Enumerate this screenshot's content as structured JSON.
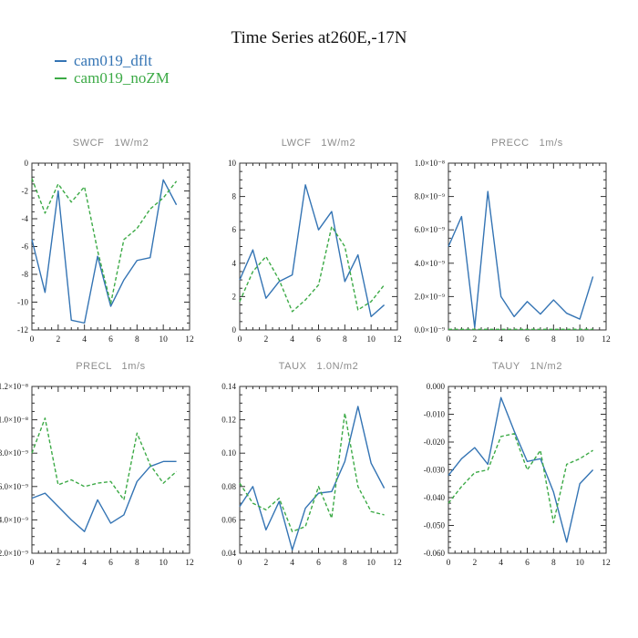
{
  "page": {
    "title": "Time Series at260E,-17N"
  },
  "legend": {
    "items": [
      {
        "label": "cam019_dflt",
        "color": "#3474B4"
      },
      {
        "label": "cam019_noZM",
        "color": "#3CAA46"
      }
    ]
  },
  "colors": {
    "blue": "#3474B4",
    "green": "#3CAA46",
    "axis": "#333333"
  },
  "axes": {
    "xlim": [
      0,
      12
    ],
    "xticks": [
      0,
      2,
      4,
      6,
      8,
      10,
      12
    ],
    "xtick_labels": [
      "0",
      "2",
      "4",
      "6",
      "8",
      "10",
      "12"
    ],
    "xminor": 0.5
  },
  "chart_data": [
    {
      "type": "line",
      "title": "SWCF   1W/m2",
      "x": [
        0,
        1,
        2,
        3,
        4,
        5,
        6,
        7,
        8,
        9,
        10,
        11
      ],
      "ylim": [
        -12,
        0
      ],
      "yminor": 0.5,
      "yticks": [
        {
          "v": 0,
          "label": "0"
        },
        {
          "v": -2,
          "label": "-2"
        },
        {
          "v": -4,
          "label": "-4"
        },
        {
          "v": -6,
          "label": "-6"
        },
        {
          "v": -8,
          "label": "-8"
        },
        {
          "v": -10,
          "label": "-10"
        },
        {
          "v": -12,
          "label": "-12"
        }
      ],
      "series": [
        {
          "name": "cam019_dflt",
          "color": "#3474B4",
          "dash": null,
          "values": [
            -5.5,
            -9.3,
            -2.0,
            -11.3,
            -11.5,
            -6.7,
            -10.3,
            -8.4,
            -7.0,
            -6.8,
            -1.2,
            -3.0
          ]
        },
        {
          "name": "cam019_noZM",
          "color": "#3CAA46",
          "dash": "4,2.5",
          "values": [
            -1.1,
            -3.6,
            -1.5,
            -2.8,
            -1.7,
            -6.3,
            -10.1,
            -5.5,
            -4.7,
            -3.3,
            -2.5,
            -1.3
          ]
        }
      ]
    },
    {
      "type": "line",
      "title": "LWCF   1W/m2",
      "x": [
        0,
        1,
        2,
        3,
        4,
        5,
        6,
        7,
        8,
        9,
        10,
        11
      ],
      "ylim": [
        0,
        10
      ],
      "yminor": 0.5,
      "yticks": [
        {
          "v": 10,
          "label": "10"
        },
        {
          "v": 8,
          "label": "8"
        },
        {
          "v": 6,
          "label": "6"
        },
        {
          "v": 4,
          "label": "4"
        },
        {
          "v": 2,
          "label": "2"
        },
        {
          "v": 0,
          "label": "0"
        }
      ],
      "series": [
        {
          "name": "cam019_dflt",
          "color": "#3474B4",
          "dash": null,
          "values": [
            3.0,
            4.8,
            1.9,
            2.9,
            3.3,
            8.7,
            6.0,
            7.1,
            2.9,
            4.5,
            0.8,
            1.5
          ]
        },
        {
          "name": "cam019_noZM",
          "color": "#3CAA46",
          "dash": "4,2.5",
          "values": [
            1.7,
            3.5,
            4.4,
            3.0,
            1.1,
            1.8,
            2.7,
            6.2,
            5.0,
            1.2,
            1.7,
            2.7
          ]
        }
      ]
    },
    {
      "type": "line",
      "title": "PRECC   1m/s",
      "x": [
        0,
        1,
        2,
        3,
        4,
        5,
        6,
        7,
        8,
        9,
        10,
        11
      ],
      "ylim": [
        0,
        1e-08
      ],
      "yminor": 5e-10,
      "yticks": [
        {
          "v": 1e-08,
          "label": "1.0×10⁻⁸"
        },
        {
          "v": 8e-09,
          "label": "8.0×10⁻⁹"
        },
        {
          "v": 6e-09,
          "label": "6.0×10⁻⁹"
        },
        {
          "v": 4e-09,
          "label": "4.0×10⁻⁹"
        },
        {
          "v": 2e-09,
          "label": "2.0×10⁻⁹"
        },
        {
          "v": 0,
          "label": "0.0×10⁻⁹"
        }
      ],
      "series": [
        {
          "name": "cam019_dflt",
          "color": "#3474B4",
          "dash": null,
          "values": [
            5e-09,
            6.8e-09,
            1.5e-10,
            8.3e-09,
            2e-09,
            8e-10,
            1.7e-09,
            9.5e-10,
            1.8e-09,
            1e-09,
            6.5e-10,
            3.2e-09
          ]
        },
        {
          "name": "cam019_noZM",
          "color": "#3CAA46",
          "dash": "4,2.5",
          "values": [
            4e-11,
            4e-11,
            4e-11,
            4e-11,
            4e-11,
            4e-11,
            4e-11,
            4e-11,
            4e-11,
            4e-11,
            4e-11,
            4e-11
          ]
        }
      ]
    },
    {
      "type": "line",
      "title": "PRECL   1m/s",
      "x": [
        0,
        1,
        2,
        3,
        4,
        5,
        6,
        7,
        8,
        9,
        10,
        11
      ],
      "ylim": [
        2e-09,
        1.2e-08
      ],
      "yminor": 5e-10,
      "yticks": [
        {
          "v": 1.2e-08,
          "label": "1.2×10⁻⁸"
        },
        {
          "v": 1e-08,
          "label": "1.0×10⁻⁸"
        },
        {
          "v": 8e-09,
          "label": "8.0×10⁻⁹"
        },
        {
          "v": 6e-09,
          "label": "6.0×10⁻⁹"
        },
        {
          "v": 4e-09,
          "label": "4.0×10⁻⁹"
        },
        {
          "v": 2e-09,
          "label": "2.0×10⁻⁹"
        }
      ],
      "series": [
        {
          "name": "cam019_dflt",
          "color": "#3474B4",
          "dash": null,
          "values": [
            5.3e-09,
            5.6e-09,
            4.8e-09,
            4e-09,
            3.3e-09,
            5.2e-09,
            3.8e-09,
            4.3e-09,
            6.3e-09,
            7.2e-09,
            7.5e-09,
            7.5e-09
          ]
        },
        {
          "name": "cam019_noZM",
          "color": "#3CAA46",
          "dash": "4,2.5",
          "values": [
            8e-09,
            1.01e-08,
            6.1e-09,
            6.4e-09,
            6e-09,
            6.2e-09,
            6.3e-09,
            5.2e-09,
            9.2e-09,
            7.3e-09,
            6.2e-09,
            6.9e-09
          ]
        }
      ]
    },
    {
      "type": "line",
      "title": "TAUX   1.0N/m2",
      "x": [
        0,
        1,
        2,
        3,
        4,
        5,
        6,
        7,
        8,
        9,
        10,
        11
      ],
      "ylim": [
        0.04,
        0.14
      ],
      "yminor": 0.005,
      "yticks": [
        {
          "v": 0.14,
          "label": "0.14"
        },
        {
          "v": 0.12,
          "label": "0.12"
        },
        {
          "v": 0.1,
          "label": "0.10"
        },
        {
          "v": 0.08,
          "label": "0.08"
        },
        {
          "v": 0.06,
          "label": "0.06"
        },
        {
          "v": 0.04,
          "label": "0.04"
        }
      ],
      "series": [
        {
          "name": "cam019_dflt",
          "color": "#3474B4",
          "dash": null,
          "values": [
            0.068,
            0.08,
            0.054,
            0.071,
            0.042,
            0.067,
            0.076,
            0.077,
            0.095,
            0.128,
            0.094,
            0.079
          ]
        },
        {
          "name": "cam019_noZM",
          "color": "#3CAA46",
          "dash": "4,2.5",
          "values": [
            0.082,
            0.07,
            0.066,
            0.073,
            0.053,
            0.056,
            0.08,
            0.061,
            0.124,
            0.08,
            0.065,
            0.063
          ]
        }
      ]
    },
    {
      "type": "line",
      "title": "TAUY   1N/m2",
      "x": [
        0,
        1,
        2,
        3,
        4,
        5,
        6,
        7,
        8,
        9,
        10,
        11
      ],
      "ylim": [
        -0.06,
        0.0
      ],
      "yminor": 0.002,
      "yticks": [
        {
          "v": 0.0,
          "label": "0.000"
        },
        {
          "v": -0.01,
          "label": "-0.010"
        },
        {
          "v": -0.02,
          "label": "-0.020"
        },
        {
          "v": -0.03,
          "label": "-0.030"
        },
        {
          "v": -0.04,
          "label": "-0.040"
        },
        {
          "v": -0.05,
          "label": "-0.050"
        },
        {
          "v": -0.06,
          "label": "-0.060"
        }
      ],
      "series": [
        {
          "name": "cam019_dflt",
          "color": "#3474B4",
          "dash": null,
          "values": [
            -0.032,
            -0.026,
            -0.022,
            -0.028,
            -0.004,
            -0.016,
            -0.027,
            -0.026,
            -0.038,
            -0.056,
            -0.035,
            -0.03
          ]
        },
        {
          "name": "cam019_noZM",
          "color": "#3CAA46",
          "dash": "4,2.5",
          "values": [
            -0.042,
            -0.036,
            -0.031,
            -0.03,
            -0.018,
            -0.017,
            -0.03,
            -0.023,
            -0.049,
            -0.028,
            -0.026,
            -0.023
          ]
        }
      ]
    }
  ]
}
